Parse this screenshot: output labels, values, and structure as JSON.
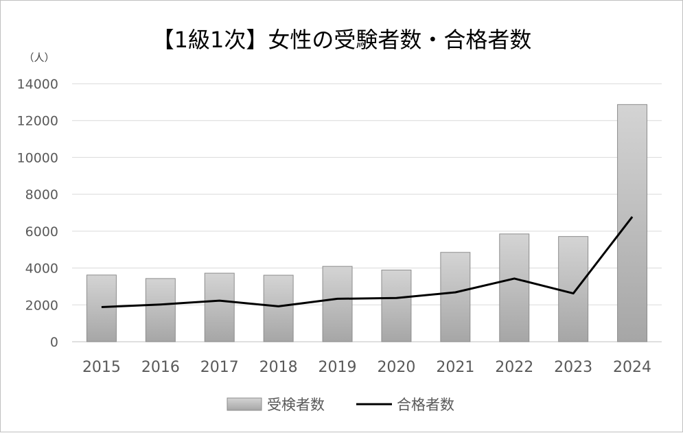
{
  "chart_data": {
    "type": "bar",
    "title": "【1級1次】女性の受験者数・合格者数",
    "ylabel": "（人）",
    "xlabel": "",
    "categories": [
      "2015",
      "2016",
      "2017",
      "2018",
      "2019",
      "2020",
      "2021",
      "2022",
      "2023",
      "2024"
    ],
    "ylim": [
      0,
      14000
    ],
    "yticks": [
      "0",
      "2000",
      "4000",
      "6000",
      "8000",
      "10000",
      "12000",
      "14000"
    ],
    "grid": true,
    "legend_position": "bottom",
    "series": [
      {
        "name": "受検者数",
        "type": "bar",
        "color": "#b3b3b3",
        "values": [
          3620,
          3430,
          3720,
          3610,
          4090,
          3890,
          4850,
          5850,
          5710,
          12870
        ]
      },
      {
        "name": "合格者数",
        "type": "line",
        "color": "#000000",
        "values": [
          1880,
          2020,
          2230,
          1920,
          2330,
          2370,
          2680,
          3430,
          2620,
          6780
        ]
      }
    ]
  }
}
